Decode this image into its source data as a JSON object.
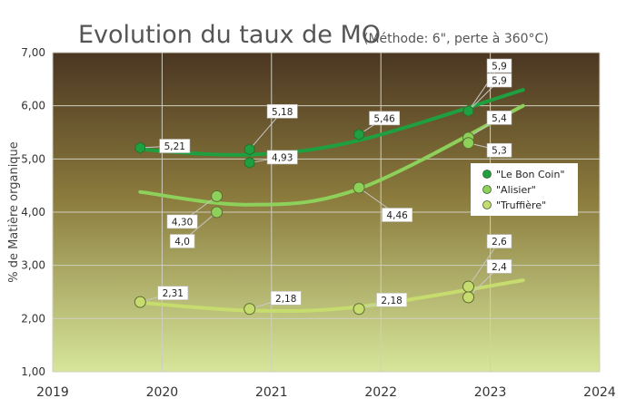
{
  "chart_data": {
    "type": "scatter",
    "title": "Evolution du taux de MO",
    "subtitle": "(Méthode: 6\", perte à 360°C)",
    "xlabel": "",
    "ylabel": "% de Matière organique",
    "xlim": [
      2019,
      2024
    ],
    "ylim": [
      1,
      7
    ],
    "x_ticks": [
      "2019",
      "2020",
      "2021",
      "2022",
      "2023",
      "2024"
    ],
    "y_ticks": [
      "1,00",
      "2,00",
      "3,00",
      "4,00",
      "5,00",
      "6,00",
      "7,00"
    ],
    "grid": true,
    "legend_position": "right",
    "series": [
      {
        "name": "\"Le Bon Coin\"",
        "color": "#1fa040",
        "points": [
          {
            "x": 2019.8,
            "y": 5.21,
            "label": "5,21"
          },
          {
            "x": 2020.8,
            "y": 5.18,
            "label": "5,18"
          },
          {
            "x": 2020.8,
            "y": 4.93,
            "label": "4,93"
          },
          {
            "x": 2021.8,
            "y": 5.46,
            "label": "5,46"
          },
          {
            "x": 2022.8,
            "y": 5.9,
            "label": "5,9"
          },
          {
            "x": 2022.8,
            "y": 5.9,
            "label": "5,9"
          }
        ],
        "trend": [
          [
            2019.8,
            5.18
          ],
          [
            2020.8,
            5.08
          ],
          [
            2021.8,
            5.35
          ],
          [
            2023.3,
            6.3
          ]
        ]
      },
      {
        "name": "\"Alisier\"",
        "color": "#8dd05a",
        "points": [
          {
            "x": 2020.5,
            "y": 4.3,
            "label": "4,30"
          },
          {
            "x": 2020.5,
            "y": 4.0,
            "label": "4,0"
          },
          {
            "x": 2021.8,
            "y": 4.46,
            "label": "4,46"
          },
          {
            "x": 2022.8,
            "y": 5.4,
            "label": "5,4"
          },
          {
            "x": 2022.8,
            "y": 5.3,
            "label": "5,3"
          }
        ],
        "trend": [
          [
            2019.8,
            4.38
          ],
          [
            2020.8,
            4.14
          ],
          [
            2021.8,
            4.44
          ],
          [
            2023.3,
            6.0
          ]
        ]
      },
      {
        "name": "\"Truffière\"",
        "color": "#c6dc6e",
        "points": [
          {
            "x": 2019.8,
            "y": 2.31,
            "label": "2,31"
          },
          {
            "x": 2020.8,
            "y": 2.18,
            "label": "2,18"
          },
          {
            "x": 2021.8,
            "y": 2.18,
            "label": "2,18"
          },
          {
            "x": 2022.8,
            "y": 2.6,
            "label": "2,6"
          },
          {
            "x": 2022.8,
            "y": 2.4,
            "label": "2,4"
          }
        ],
        "trend": [
          [
            2019.8,
            2.3
          ],
          [
            2020.8,
            2.15
          ],
          [
            2021.8,
            2.22
          ],
          [
            2023.3,
            2.72
          ]
        ]
      }
    ]
  }
}
